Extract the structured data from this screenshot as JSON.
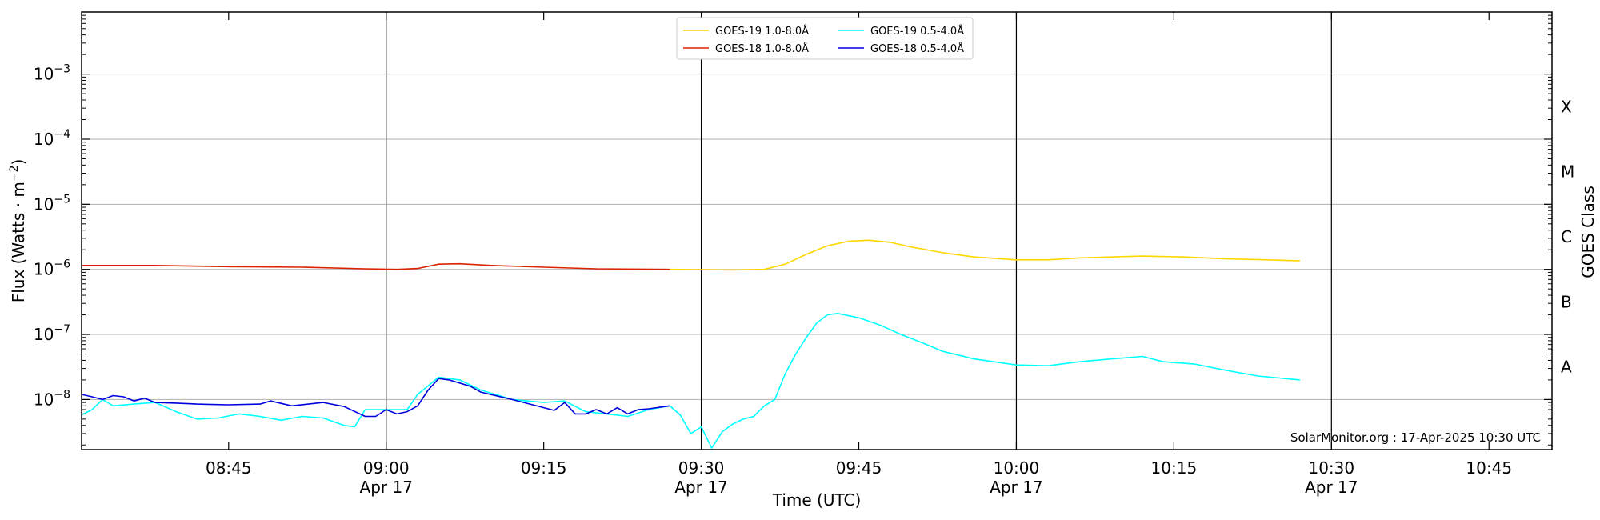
{
  "chart_data": {
    "type": "line",
    "xlabel": "Time (UTC)",
    "ylabel": "Flux (Watts · m⁻²)",
    "ylabel_parts": {
      "base": "Flux (Watts · m",
      "sup": "−2",
      "tail": ")"
    },
    "y2label": "GOES Class",
    "yscale": "log",
    "xlim": [
      "08:31",
      "10:51"
    ],
    "ylim": [
      1.7e-09,
      0.009
    ],
    "grid": "horizontal",
    "legend_position": "top-center",
    "credit": "SolarMonitor.org : 17-Apr-2025 10:30 UTC",
    "x_ticks": [
      {
        "value": "08:45",
        "label": "08:45",
        "date": ""
      },
      {
        "value": "09:00",
        "label": "09:00",
        "date": "Apr 17"
      },
      {
        "value": "09:15",
        "label": "09:15",
        "date": ""
      },
      {
        "value": "09:30",
        "label": "09:30",
        "date": "Apr 17"
      },
      {
        "value": "09:45",
        "label": "09:45",
        "date": ""
      },
      {
        "value": "10:00",
        "label": "10:00",
        "date": "Apr 17"
      },
      {
        "value": "10:15",
        "label": "10:15",
        "date": ""
      },
      {
        "value": "10:30",
        "label": "10:30",
        "date": "Apr 17"
      },
      {
        "value": "10:45",
        "label": "10:45",
        "date": ""
      }
    ],
    "vertical_lines": [
      "09:00",
      "09:30",
      "10:00",
      "10:30"
    ],
    "y_ticks": [
      {
        "exp": -8,
        "label": "10",
        "sup": "−8"
      },
      {
        "exp": -7,
        "label": "10",
        "sup": "−7"
      },
      {
        "exp": -6,
        "label": "10",
        "sup": "−6"
      },
      {
        "exp": -5,
        "label": "10",
        "sup": "−5"
      },
      {
        "exp": -4,
        "label": "10",
        "sup": "−4"
      },
      {
        "exp": -3,
        "label": "10",
        "sup": "−3"
      }
    ],
    "class_labels": [
      {
        "label": "A",
        "exp": -7.5
      },
      {
        "label": "B",
        "exp": -6.5
      },
      {
        "label": "C",
        "exp": -5.5
      },
      {
        "label": "M",
        "exp": -4.5
      },
      {
        "label": "X",
        "exp": -3.5
      }
    ],
    "series": [
      {
        "name": "GOES-19 1.0-8.0Å",
        "color": "#ffd700",
        "points": [
          [
            "09:27",
            1e-06
          ],
          [
            "09:30",
            9.9e-07
          ],
          [
            "09:33",
            9.8e-07
          ],
          [
            "09:36",
            1e-06
          ],
          [
            "09:38",
            1.2e-06
          ],
          [
            "09:40",
            1.7e-06
          ],
          [
            "09:42",
            2.3e-06
          ],
          [
            "09:44",
            2.7e-06
          ],
          [
            "09:46",
            2.8e-06
          ],
          [
            "09:48",
            2.6e-06
          ],
          [
            "09:50",
            2.2e-06
          ],
          [
            "09:53",
            1.8e-06
          ],
          [
            "09:56",
            1.55e-06
          ],
          [
            "10:00",
            1.4e-06
          ],
          [
            "10:03",
            1.4e-06
          ],
          [
            "10:06",
            1.5e-06
          ],
          [
            "10:09",
            1.55e-06
          ],
          [
            "10:12",
            1.6e-06
          ],
          [
            "10:16",
            1.55e-06
          ],
          [
            "10:20",
            1.45e-06
          ],
          [
            "10:24",
            1.4e-06
          ],
          [
            "10:27",
            1.35e-06
          ]
        ]
      },
      {
        "name": "GOES-18 1.0-8.0Å",
        "color": "#dd2200",
        "points": [
          [
            "08:31",
            1.15e-06
          ],
          [
            "08:38",
            1.15e-06
          ],
          [
            "08:45",
            1.1e-06
          ],
          [
            "08:52",
            1.08e-06
          ],
          [
            "08:58",
            1.02e-06
          ],
          [
            "09:01",
            1e-06
          ],
          [
            "09:03",
            1.03e-06
          ],
          [
            "09:05",
            1.2e-06
          ],
          [
            "09:07",
            1.22e-06
          ],
          [
            "09:10",
            1.15e-06
          ],
          [
            "09:15",
            1.08e-06
          ],
          [
            "09:20",
            1.02e-06
          ],
          [
            "09:27",
            1e-06
          ]
        ]
      },
      {
        "name": "GOES-19 0.5-4.0Å",
        "color": "#00ffff",
        "points": [
          [
            "08:31",
            5.8e-09
          ],
          [
            "08:32",
            7e-09
          ],
          [
            "08:33",
            1e-08
          ],
          [
            "08:34",
            8e-09
          ],
          [
            "08:36",
            8.5e-09
          ],
          [
            "08:38",
            9e-09
          ],
          [
            "08:40",
            6.5e-09
          ],
          [
            "08:42",
            5e-09
          ],
          [
            "08:44",
            5.2e-09
          ],
          [
            "08:46",
            6e-09
          ],
          [
            "08:48",
            5.5e-09
          ],
          [
            "08:50",
            4.8e-09
          ],
          [
            "08:52",
            5.5e-09
          ],
          [
            "08:54",
            5.2e-09
          ],
          [
            "08:56",
            4e-09
          ],
          [
            "08:57",
            3.8e-09
          ],
          [
            "08:58",
            7e-09
          ],
          [
            "09:00",
            7e-09
          ],
          [
            "09:02",
            7e-09
          ],
          [
            "09:03",
            1.2e-08
          ],
          [
            "09:05",
            2.2e-08
          ],
          [
            "09:07",
            2e-08
          ],
          [
            "09:09",
            1.4e-08
          ],
          [
            "09:12",
            1e-08
          ],
          [
            "09:15",
            9e-09
          ],
          [
            "09:17",
            9.5e-09
          ],
          [
            "09:19",
            6.5e-09
          ],
          [
            "09:21",
            6e-09
          ],
          [
            "09:23",
            5.5e-09
          ],
          [
            "09:25",
            7e-09
          ],
          [
            "09:27",
            8e-09
          ],
          [
            "09:28",
            5.8e-09
          ],
          [
            "09:29",
            3e-09
          ],
          [
            "09:30",
            3.8e-09
          ],
          [
            "09:31",
            1.8e-09
          ],
          [
            "09:32",
            3.2e-09
          ],
          [
            "09:33",
            4.2e-09
          ],
          [
            "09:34",
            5e-09
          ],
          [
            "09:35",
            5.5e-09
          ],
          [
            "09:36",
            8e-09
          ],
          [
            "09:37",
            1e-08
          ],
          [
            "09:38",
            2.5e-08
          ],
          [
            "09:39",
            5e-08
          ],
          [
            "09:40",
            9e-08
          ],
          [
            "09:41",
            1.5e-07
          ],
          [
            "09:42",
            2e-07
          ],
          [
            "09:43",
            2.1e-07
          ],
          [
            "09:45",
            1.8e-07
          ],
          [
            "09:47",
            1.4e-07
          ],
          [
            "09:49",
            1e-07
          ],
          [
            "09:51",
            7.5e-08
          ],
          [
            "09:53",
            5.5e-08
          ],
          [
            "09:56",
            4.2e-08
          ],
          [
            "10:00",
            3.4e-08
          ],
          [
            "10:03",
            3.3e-08
          ],
          [
            "10:06",
            3.8e-08
          ],
          [
            "10:09",
            4.2e-08
          ],
          [
            "10:12",
            4.6e-08
          ],
          [
            "10:14",
            3.8e-08
          ],
          [
            "10:17",
            3.5e-08
          ],
          [
            "10:20",
            2.8e-08
          ],
          [
            "10:23",
            2.3e-08
          ],
          [
            "10:27",
            2e-08
          ]
        ]
      },
      {
        "name": "GOES-18 0.5-4.0Å",
        "color": "#0000dd",
        "points": [
          [
            "08:31",
            1.2e-08
          ],
          [
            "08:32",
            1.1e-08
          ],
          [
            "08:33",
            1e-08
          ],
          [
            "08:34",
            1.15e-08
          ],
          [
            "08:35",
            1.1e-08
          ],
          [
            "08:36",
            9.5e-09
          ],
          [
            "08:37",
            1.05e-08
          ],
          [
            "08:38",
            9e-09
          ],
          [
            "08:40",
            8.8e-09
          ],
          [
            "08:42",
            8.5e-09
          ],
          [
            "08:45",
            8.3e-09
          ],
          [
            "08:48",
            8.5e-09
          ],
          [
            "08:49",
            9.5e-09
          ],
          [
            "08:51",
            8e-09
          ],
          [
            "08:54",
            9e-09
          ],
          [
            "08:56",
            7.8e-09
          ],
          [
            "08:58",
            5.5e-09
          ],
          [
            "08:59",
            5.5e-09
          ],
          [
            "09:00",
            7e-09
          ],
          [
            "09:01",
            6e-09
          ],
          [
            "09:02",
            6.5e-09
          ],
          [
            "09:03",
            8e-09
          ],
          [
            "09:04",
            1.4e-08
          ],
          [
            "09:05",
            2.1e-08
          ],
          [
            "09:06",
            2e-08
          ],
          [
            "09:08",
            1.6e-08
          ],
          [
            "09:09",
            1.3e-08
          ],
          [
            "09:12",
            1e-08
          ],
          [
            "09:15",
            7.5e-09
          ],
          [
            "09:16",
            6.8e-09
          ],
          [
            "09:17",
            9e-09
          ],
          [
            "09:18",
            6e-09
          ],
          [
            "09:19",
            6e-09
          ],
          [
            "09:20",
            7e-09
          ],
          [
            "09:21",
            6e-09
          ],
          [
            "09:22",
            7.5e-09
          ],
          [
            "09:23",
            6e-09
          ],
          [
            "09:24",
            7e-09
          ],
          [
            "09:25",
            7.2e-09
          ],
          [
            "09:27",
            8e-09
          ]
        ]
      }
    ]
  }
}
